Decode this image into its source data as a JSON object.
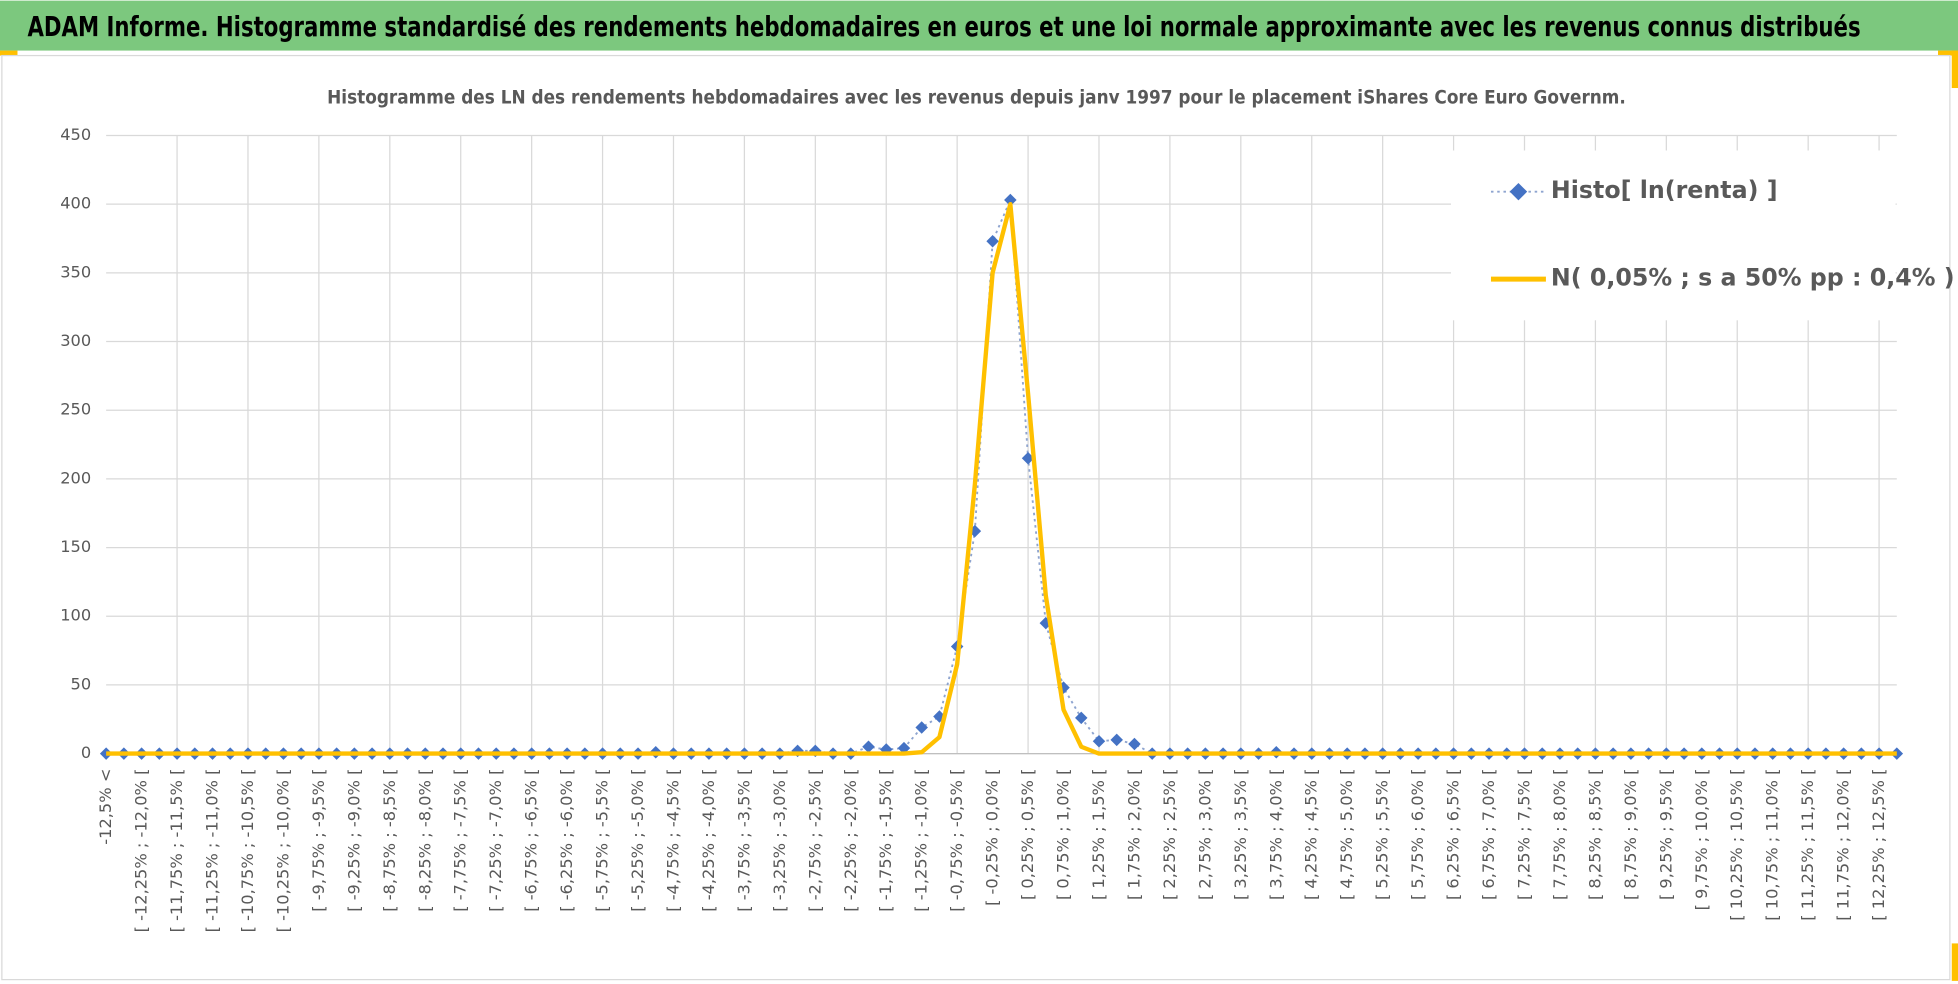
{
  "header": {
    "title": "ADAM Informe. Histogramme standardisé des rendements hebdomadaires en euros et une loi normale approximante avec les revenus connus distribués"
  },
  "chart_data": {
    "type": "line",
    "title": "Histogramme des LN des rendements hebdomadaires avec les revenus depuis janv 1997 pour le placement iShares Core Euro Governm.",
    "categories": [
      "-12,5% <",
      null,
      "[ -12,25% ; -12,0% [",
      null,
      "[ -11,75% ; -11,5% [",
      null,
      "[ -11,25% ; -11,0% [",
      null,
      "[ -10,75% ; -10,5% [",
      null,
      "[ -10,25% ; -10,0% [",
      null,
      "[ -9,75% ; -9,5% [",
      null,
      "[ -9,25% ; -9,0% [",
      null,
      "[ -8,75% ; -8,5% [",
      null,
      "[ -8,25% ; -8,0% [",
      null,
      "[ -7,75% ; -7,5% [",
      null,
      "[ -7,25% ; -7,0% [",
      null,
      "[ -6,75% ; -6,5% [",
      null,
      "[ -6,25% ; -6,0% [",
      null,
      "[ -5,75% ; -5,5% [",
      null,
      "[ -5,25% ; -5,0% [",
      null,
      "[ -4,75% ; -4,5% [",
      null,
      "[ -4,25% ; -4,0% [",
      null,
      "[ -3,75% ; -3,5% [",
      null,
      "[ -3,25% ; -3,0% [",
      null,
      "[ -2,75% ; -2,5% [",
      null,
      "[ -2,25% ; -2,0% [",
      null,
      "[ -1,75% ; -1,5% [",
      null,
      "[ -1,25% ; -1,0% [",
      null,
      "[ -0,75% ; -0,5% [",
      null,
      "[ -0,25% ; 0,0% [",
      null,
      "[ 0,25% ; 0,5% [",
      null,
      "[ 0,75% ; 1,0% [",
      null,
      "[ 1,25% ; 1,5% [",
      null,
      "[ 1,75% ; 2,0% [",
      null,
      "[ 2,25% ; 2,5% [",
      null,
      "[ 2,75% ; 3,0% [",
      null,
      "[ 3,25% ; 3,5% [",
      null,
      "[ 3,75% ; 4,0% [",
      null,
      "[ 4,25% ; 4,5% [",
      null,
      "[ 4,75% ; 5,0% [",
      null,
      "[ 5,25% ; 5,5% [",
      null,
      "[ 5,75% ; 6,0% [",
      null,
      "[ 6,25% ; 6,5% [",
      null,
      "[ 6,75% ; 7,0% [",
      null,
      "[ 7,25% ; 7,5% [",
      null,
      "[ 7,75% ; 8,0% [",
      null,
      "[ 8,25% ; 8,5% [",
      null,
      "[ 8,75% ; 9,0% [",
      null,
      "[ 9,25% ; 9,5% [",
      null,
      "[ 9,75% ; 10,0% [",
      null,
      "[ 10,25% ; 10,5% [",
      null,
      "[ 10,75% ; 11,0% [",
      null,
      "[ 11,25% ; 11,5% [",
      null,
      "[ 11,75% ; 12,0% [",
      null,
      "[ 12,25% ; 12,5% [",
      null
    ],
    "series": [
      {
        "name": "Histo[ ln(renta) ]",
        "color": "#4472c4",
        "line_style": "dotted",
        "marker": "diamond",
        "values": [
          0,
          0,
          0,
          0,
          0,
          0,
          0,
          0,
          0,
          0,
          0,
          0,
          0,
          0,
          0,
          0,
          0,
          0,
          0,
          0,
          0,
          0,
          0,
          0,
          0,
          0,
          0,
          0,
          0,
          0,
          0,
          1,
          0,
          0,
          0,
          0,
          0,
          0,
          0,
          2,
          2,
          0,
          0,
          5,
          3,
          4,
          19,
          27,
          78,
          162,
          373,
          403,
          215,
          95,
          48,
          26,
          9,
          10,
          7,
          0,
          0,
          0,
          0,
          0,
          0,
          0,
          1,
          0,
          0,
          0,
          0,
          0,
          0,
          0,
          0,
          0,
          0,
          0,
          0,
          0,
          0,
          0,
          0,
          0,
          0,
          0,
          0,
          0,
          0,
          0,
          0,
          0,
          0,
          0,
          0,
          0,
          0,
          0,
          0,
          0,
          0,
          0
        ]
      },
      {
        "name": "N( 0,05% ; s a 50% pp : 0,4% )",
        "color": "#ffc000",
        "line_style": "solid",
        "marker": "none",
        "values": [
          0,
          0,
          0,
          0,
          0,
          0,
          0,
          0,
          0,
          0,
          0,
          0,
          0,
          0,
          0,
          0,
          0,
          0,
          0,
          0,
          0,
          0,
          0,
          0,
          0,
          0,
          0,
          0,
          0,
          0,
          0,
          0,
          0,
          0,
          0,
          0,
          0,
          0,
          0,
          0,
          0,
          0,
          0,
          0,
          0,
          0,
          1,
          12,
          65,
          196,
          350,
          400,
          262,
          115,
          32,
          5,
          0,
          0,
          0,
          0,
          0,
          0,
          0,
          0,
          0,
          0,
          0,
          0,
          0,
          0,
          0,
          0,
          0,
          0,
          0,
          0,
          0,
          0,
          0,
          0,
          0,
          0,
          0,
          0,
          0,
          0,
          0,
          0,
          0,
          0,
          0,
          0,
          0,
          0,
          0,
          0,
          0,
          0,
          0,
          0,
          0,
          0
        ]
      }
    ],
    "ylim": [
      0,
      450
    ],
    "yticks": [
      0,
      50,
      100,
      150,
      200,
      250,
      300,
      350,
      400,
      450
    ],
    "grid": true,
    "legend": "upper right"
  }
}
